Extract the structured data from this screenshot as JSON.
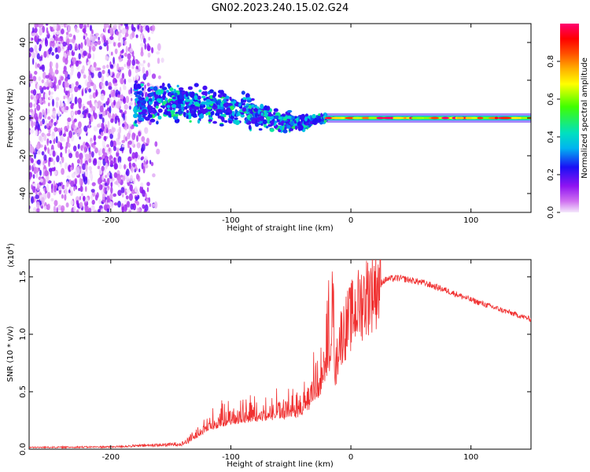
{
  "figure": {
    "title": "GN02.2023.240.15.02.G24"
  },
  "chart_data": [
    {
      "type": "heatmap",
      "name": "spectrogram",
      "xlabel": "Height of straight line (km)",
      "ylabel": "Frequency (Hz)",
      "xlim": [
        -268,
        150
      ],
      "ylim": [
        -50,
        50
      ],
      "xticks": [
        -200,
        -100,
        0,
        100
      ],
      "yticks": [
        -40,
        -20,
        0,
        20,
        40
      ],
      "features": [
        {
          "kind": "noise",
          "x_range": [
            -268,
            -155
          ],
          "freq_range": [
            -50,
            50
          ],
          "amplitude": [
            0.0,
            0.2
          ]
        },
        {
          "kind": "drifting-band",
          "x": [
            -180,
            -150,
            -120,
            -100,
            -80,
            -60,
            -40,
            -30,
            -20
          ],
          "freq": [
            8,
            8,
            6,
            5,
            2,
            -2,
            -3,
            -1,
            0
          ],
          "spread_hz": [
            12,
            10,
            9,
            8,
            8,
            6,
            4,
            2,
            2
          ],
          "amplitude": [
            0.2,
            0.5
          ]
        },
        {
          "kind": "tone",
          "x_range": [
            -20,
            150
          ],
          "freq": 0,
          "amplitude": [
            0.6,
            1.0
          ]
        }
      ],
      "colorbar": {
        "label": "Normalized spectral amplitude",
        "ticks": [
          "0.0",
          "0.2",
          "0.4",
          "0.6",
          "0.8"
        ],
        "range": [
          0,
          1
        ]
      }
    },
    {
      "type": "line",
      "name": "snr",
      "xlabel": "Height of straight line (km)",
      "ylabel": "SNR (10 * v/v)",
      "scale_note": "(x10",
      "scale_exp": "4",
      "scale_close": ")",
      "xlim": [
        -268,
        150
      ],
      "ylim": [
        0,
        16500
      ],
      "xticks": [
        -200,
        -100,
        0,
        100
      ],
      "yticks": [
        0,
        5000,
        10000,
        15000
      ],
      "ytick_labels": [
        "0.0",
        "0.5",
        "1.0",
        "1.5"
      ],
      "color": "#f03030",
      "series": [
        {
          "name": "SNR",
          "x": [
            -268,
            -200,
            -150,
            -140,
            -130,
            -120,
            -100,
            -80,
            -60,
            -45,
            -35,
            -25,
            -20,
            -17,
            -15,
            -13,
            -10,
            -5,
            0,
            10,
            20,
            30,
            40,
            60,
            80,
            100,
            120,
            150
          ],
          "y": [
            150,
            200,
            400,
            500,
            1000,
            1800,
            2500,
            2800,
            3000,
            3200,
            4000,
            5500,
            7500,
            10000,
            13500,
            6500,
            9500,
            10500,
            11500,
            13000,
            14200,
            14800,
            14900,
            14500,
            13800,
            13000,
            12300,
            11300
          ]
        }
      ]
    }
  ]
}
